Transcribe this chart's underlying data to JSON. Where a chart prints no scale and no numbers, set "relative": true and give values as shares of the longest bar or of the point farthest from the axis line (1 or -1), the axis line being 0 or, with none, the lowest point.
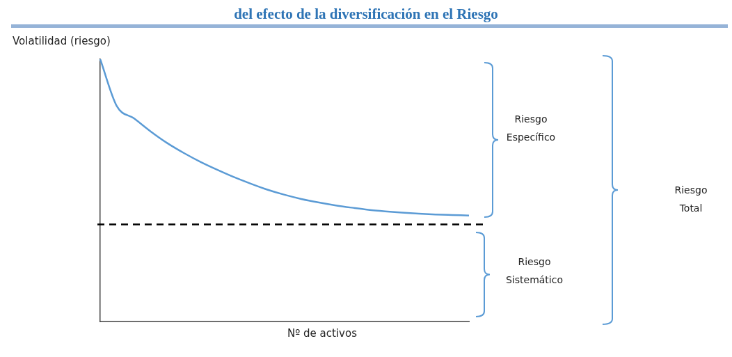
{
  "chart_data": {
    "type": "line",
    "title": "del efecto de la diversificación en el Riesgo",
    "xlabel": "Nº de activos",
    "ylabel": "Volatilidad (riesgo)",
    "relative": true,
    "categories": [
      null,
      null,
      null,
      null,
      null,
      null,
      null,
      null,
      null,
      null,
      null,
      null,
      null,
      null,
      null,
      null,
      null,
      null,
      null,
      null,
      null,
      null,
      null
    ],
    "series": [
      {
        "color": "#5b9bd5",
        "values": [
          1,
          0.82,
          0.775,
          0.725,
          0.68,
          0.642,
          0.608,
          0.578,
          0.55,
          0.525,
          0.502,
          0.483,
          0.467,
          0.454,
          0.443,
          0.434,
          0.426,
          0.42,
          0.415,
          0.411,
          0.408,
          0.406,
          0.404
        ]
      }
    ],
    "ref_lines": [
      {
        "axis": "y",
        "value": 0.37,
        "color": "#000000",
        "line_style": "dashed"
      }
    ],
    "annotations": [
      "Riesgo Específico",
      "Riesgo Sistemático",
      "Riesgo Total"
    ],
    "marker": "none",
    "line_style": "solid"
  }
}
